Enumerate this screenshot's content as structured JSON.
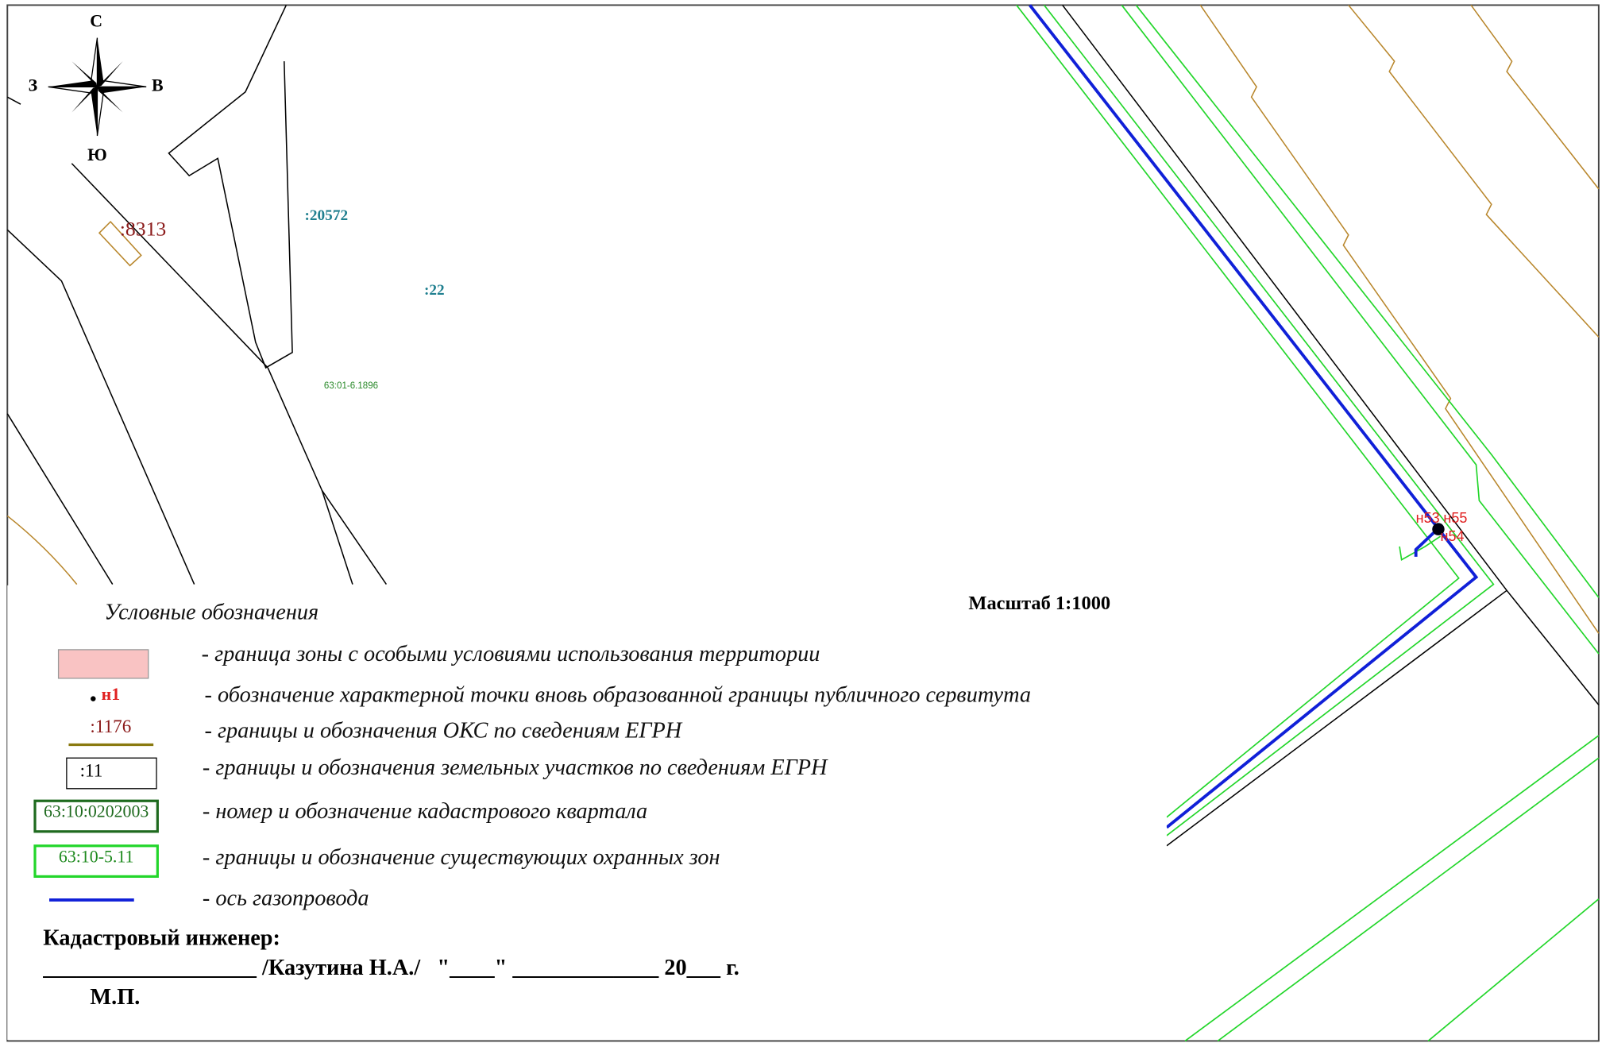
{
  "compass": {
    "north": "С",
    "west": "З",
    "east": "В",
    "south": "Ю"
  },
  "map_labels": {
    "parcel_8313": ":8313",
    "parcel_20572": ":20572",
    "parcel_22": ":22",
    "zone_label": "63:01-6.1896",
    "point_n53": "н53",
    "point_n55": "н55",
    "point_n54": "н54"
  },
  "scale": "Масштаб 1:1000",
  "legend": {
    "title": "Условные обозначения",
    "items": [
      {
        "sample": null,
        "text": "- граница зоны с особыми условиями использования территории"
      },
      {
        "sample": "н1",
        "text": "- обозначение характерной точки вновь образованной границы публичного сервитута"
      },
      {
        "sample": ":1176",
        "text": "- границы и обозначения ОКС по сведениям ЕГРН"
      },
      {
        "sample": ":11",
        "text": "- границы и обозначения земельных участков по сведениям ЕГРН"
      },
      {
        "sample": "63:10:0202003",
        "text": "- номер и обозначение кадастрового квартала"
      },
      {
        "sample": "63:10-5.11",
        "text": "- границы и обозначение существующих охранных зон"
      },
      {
        "sample": null,
        "text": "- ось газопровода"
      }
    ]
  },
  "signature": {
    "title": "Кадастровый инженер:",
    "line": "___________________ /Казутина Н.А./   \"____\" _____________ 20___ г.",
    "stamp": "М.П."
  }
}
